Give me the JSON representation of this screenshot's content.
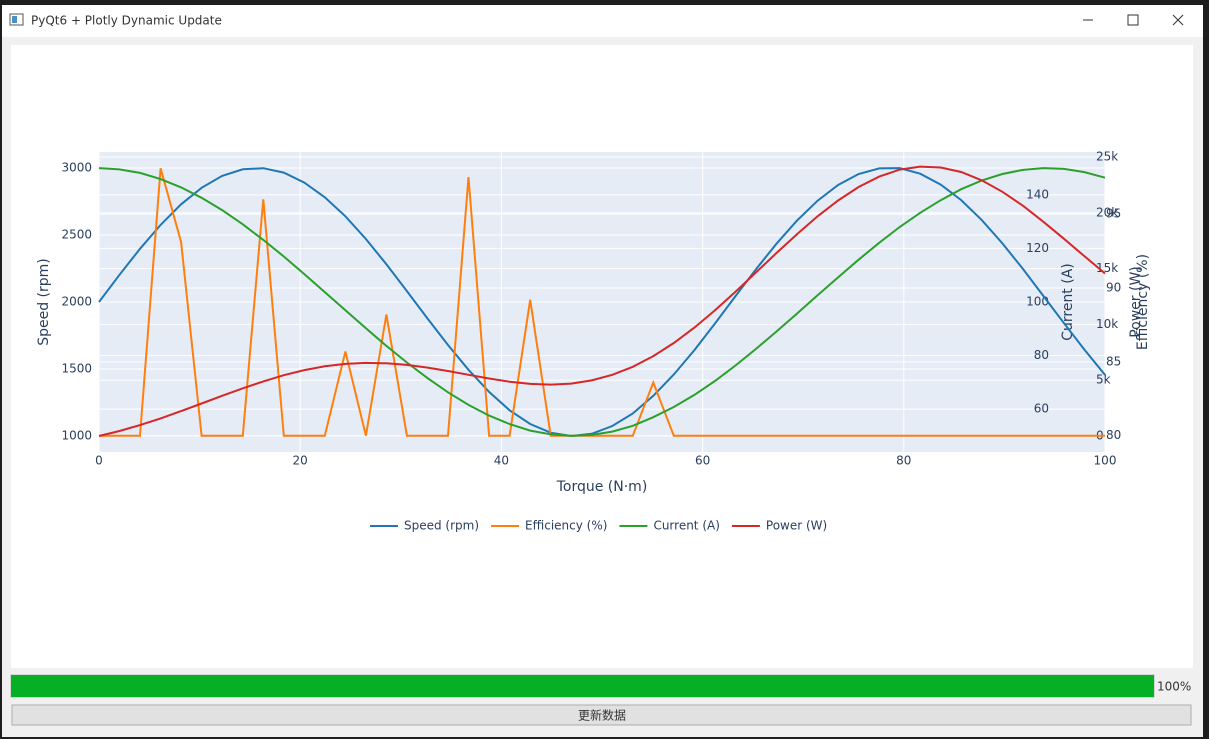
{
  "window": {
    "title": "PyQt6 + Plotly Dynamic Update"
  },
  "chart_data": {
    "type": "line",
    "x": [
      0,
      2.04,
      4.08,
      6.12,
      8.16,
      10.2,
      12.24,
      14.29,
      16.33,
      18.37,
      20.41,
      22.45,
      24.49,
      26.53,
      28.57,
      30.61,
      32.65,
      34.69,
      36.73,
      38.78,
      40.82,
      42.86,
      44.9,
      46.94,
      48.98,
      51.02,
      53.06,
      55.1,
      57.14,
      59.18,
      61.22,
      63.27,
      65.31,
      67.35,
      69.39,
      71.43,
      73.47,
      75.51,
      77.55,
      79.59,
      81.63,
      83.67,
      85.71,
      87.76,
      89.8,
      91.84,
      93.88,
      95.92,
      97.96,
      100
    ],
    "xlabel": "Torque (N·m)",
    "xlim": [
      0,
      100
    ],
    "xticks": [
      0,
      20,
      40,
      60,
      80,
      100
    ],
    "ylabel": "Speed (rpm)",
    "ylim": [
      881,
      3119
    ],
    "yticks": [
      1000,
      1500,
      2000,
      2500,
      3000
    ],
    "y2label": "Efficiency (%)",
    "y2lim": [
      78.9,
      99.2
    ],
    "y2ticks": [
      80,
      85,
      90,
      95
    ],
    "y3label": "Current (A)",
    "y3lim": [
      44,
      156
    ],
    "y3ticks": [
      60,
      80,
      100,
      120,
      140
    ],
    "y4label": "Power (W)",
    "y4lim": [
      -1434,
      25450
    ],
    "y4ticks": [
      0,
      {
        "value": 5000,
        "label": "5k"
      },
      {
        "value": 10000,
        "label": "10k"
      },
      {
        "value": 15000,
        "label": "15k"
      },
      {
        "value": 20000,
        "label": "20k"
      },
      {
        "value": 25000,
        "label": "25k"
      }
    ],
    "grid": true,
    "legend": "bottom",
    "series": [
      {
        "name": "Speed (rpm)",
        "color": "#1f77b4",
        "axis": "y",
        "values": [
          2000,
          2203,
          2397,
          2575,
          2729,
          2852,
          2941,
          2990,
          2998,
          2965,
          2891,
          2781,
          2639,
          2470,
          2281,
          2081,
          1877,
          1679,
          1494,
          1329,
          1192,
          1090,
          1025,
          1000,
          1017,
          1075,
          1168,
          1300,
          1459,
          1641,
          1839,
          2044,
          2245,
          2435,
          2608,
          2756,
          2873,
          2955,
          2997,
          2999,
          2957,
          2876,
          2760,
          2610,
          2437,
          2247,
          2045,
          1842,
          1644,
          1456
        ]
      },
      {
        "name": "Efficiency (%)",
        "color": "#ff7f0e",
        "axis": "y2",
        "values": [
          80,
          80,
          80,
          98.1,
          93.1,
          80,
          80,
          80,
          96.0,
          80,
          80,
          80,
          85.7,
          80,
          88.2,
          80,
          80,
          80,
          97.5,
          80,
          80,
          89.2,
          80,
          80,
          80,
          80,
          80,
          83.6,
          80,
          80,
          80,
          80,
          80,
          80,
          80,
          80,
          80,
          80,
          80,
          80,
          80,
          80,
          80,
          80,
          80,
          80,
          80,
          80,
          80,
          80
        ]
      },
      {
        "name": "Current (A)",
        "color": "#2ca02c",
        "axis": "y3",
        "values": [
          150,
          149.5,
          148.2,
          145.9,
          142.8,
          138.9,
          134.3,
          129.0,
          123.2,
          117.0,
          110.4,
          103.7,
          96.9,
          90.2,
          83.6,
          77.4,
          71.6,
          66.3,
          61.6,
          57.6,
          54.4,
          52.0,
          50.6,
          50.0,
          50.4,
          51.6,
          53.8,
          57.0,
          60.8,
          65.3,
          70.5,
          76.3,
          82.5,
          89.0,
          95.7,
          102.5,
          109.2,
          115.8,
          122.1,
          128.0,
          133.3,
          138.0,
          142.1,
          145.4,
          147.8,
          149.3,
          150.0,
          149.7,
          148.5,
          146.4
        ]
      },
      {
        "name": "Power (W)",
        "color": "#d62728",
        "axis": "y4",
        "values": [
          0,
          449,
          978,
          1576,
          2227,
          2909,
          3600,
          4273,
          4896,
          5447,
          5901,
          6243,
          6463,
          6553,
          6517,
          6370,
          6128,
          5825,
          5488,
          5154,
          4866,
          4672,
          4602,
          4694,
          4981,
          5485,
          6197,
          7163,
          8337,
          9711,
          11258,
          12932,
          14662,
          16400,
          18097,
          19686,
          21108,
          22313,
          23242,
          23869,
          24138,
          24064,
          23656,
          22905,
          21884,
          20636,
          19199,
          17669,
          16105,
          14560
        ]
      }
    ]
  },
  "progress": {
    "value": 100,
    "label": "100%",
    "range": [
      0,
      100
    ]
  },
  "button": {
    "label": "更新数据"
  }
}
